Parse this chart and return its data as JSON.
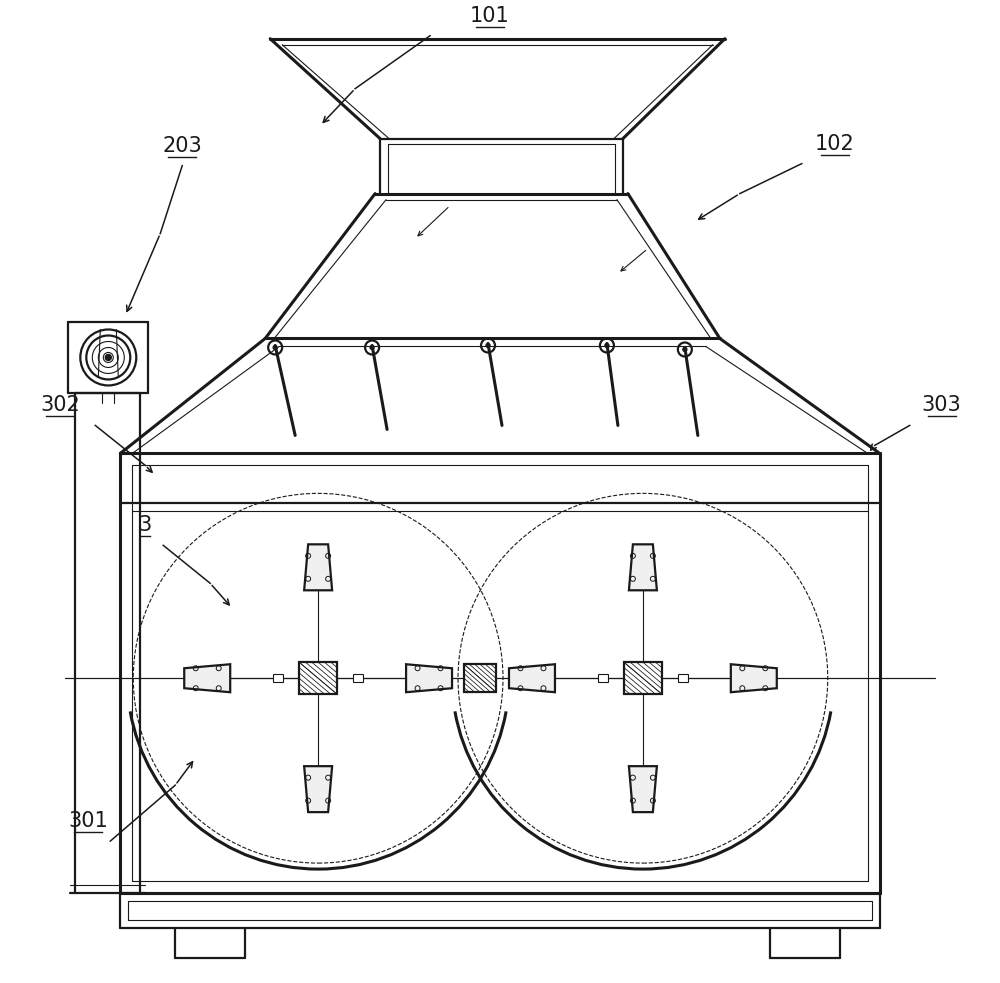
{
  "bg": "#ffffff",
  "lc": "#1a1a1a",
  "lw1": 0.8,
  "lw2": 1.6,
  "lw3": 2.2,
  "figw": 10.0,
  "figh": 9.83,
  "dpi": 100
}
